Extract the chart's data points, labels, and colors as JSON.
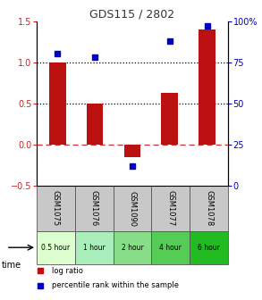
{
  "title": "GDS115 / 2802",
  "categories": [
    "GSM1075",
    "GSM1076",
    "GSM1090",
    "GSM1077",
    "GSM1078"
  ],
  "time_labels": [
    "0.5 hour",
    "1 hour",
    "2 hour",
    "4 hour",
    "6 hour"
  ],
  "time_colors": [
    "#ddffd0",
    "#aaeebb",
    "#88dd88",
    "#55cc55",
    "#22bb22"
  ],
  "log_ratios": [
    1.0,
    0.5,
    -0.15,
    0.63,
    1.4
  ],
  "percentile_ranks": [
    80,
    78,
    12,
    88,
    97
  ],
  "bar_color": "#bb1111",
  "dot_color": "#0000cc",
  "ylim_left": [
    -0.5,
    1.5
  ],
  "ylim_right": [
    0,
    100
  ],
  "yticks_left": [
    -0.5,
    0.0,
    0.5,
    1.0,
    1.5
  ],
  "yticks_right": [
    0,
    25,
    50,
    75,
    100
  ],
  "hline_dotted": [
    0.5,
    1.0
  ],
  "hline_zero": 0.0,
  "legend_entries": [
    "log ratio",
    "percentile rank within the sample"
  ],
  "bar_width": 0.45,
  "title_fontsize": 9,
  "left_tick_color": "#cc2222",
  "right_tick_color": "#0000bb",
  "tick_labelsize": 7,
  "gsm_bg_color": "#c8c8c8",
  "gsm_fontsize": 6
}
